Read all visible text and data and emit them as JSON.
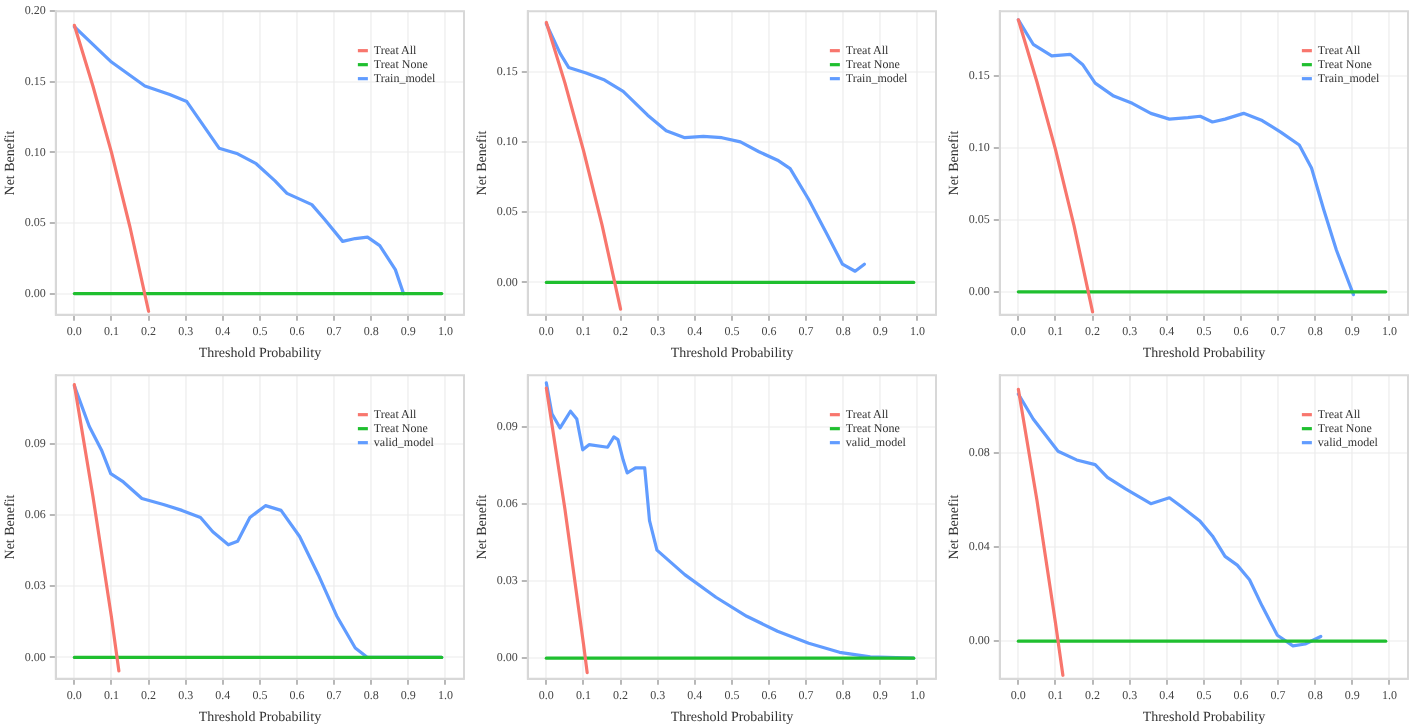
{
  "chart_data": [
    {
      "type": "line",
      "xlabel": "Threshold Probability",
      "ylabel": "Net Benefit",
      "grid": true,
      "legend": "top right",
      "xlim": [
        -0.05,
        1.05
      ],
      "ylim": [
        -0.015,
        0.2
      ],
      "xticks": [
        {
          "value": 0,
          "label": "0.0"
        },
        {
          "value": 0.1,
          "label": "0.1"
        },
        {
          "value": 0.2,
          "label": "0.2"
        },
        {
          "value": 0.3,
          "label": "0.3"
        },
        {
          "value": 0.4,
          "label": "0.4"
        },
        {
          "value": 0.5,
          "label": "0.5"
        },
        {
          "value": 0.6,
          "label": "0.6"
        },
        {
          "value": 0.7,
          "label": "0.7"
        },
        {
          "value": 0.8,
          "label": "0.8"
        },
        {
          "value": 0.9,
          "label": "0.9"
        },
        {
          "value": 1,
          "label": "1.0"
        }
      ],
      "yticks": [
        {
          "value": 0,
          "label": "0.00"
        },
        {
          "value": 0.05,
          "label": "0.05"
        },
        {
          "value": 0.1,
          "label": "0.10"
        },
        {
          "value": 0.15,
          "label": "0.15"
        },
        {
          "value": 0.2,
          "label": "0.20"
        }
      ],
      "series": [
        {
          "name": "Treat All",
          "color": "#f8766d",
          "x": [
            0,
            0.05,
            0.1,
            0.15,
            0.2
          ],
          "values": [
            0.19,
            0.147,
            0.1,
            0.047,
            -0.0125
          ]
        },
        {
          "name": "Treat None",
          "color": "#1fbf2f",
          "x": [
            0,
            0.99
          ],
          "values": [
            0,
            0
          ]
        },
        {
          "name": "Train_model",
          "color": "#619cff",
          "x": [
            0,
            0.04,
            0.1,
            0.19,
            0.257,
            0.303,
            0.34,
            0.39,
            0.44,
            0.49,
            0.54,
            0.573,
            0.64,
            0.673,
            0.723,
            0.757,
            0.79,
            0.823,
            0.865,
            0.887
          ],
          "values": [
            0.189,
            0.179,
            0.164,
            0.147,
            0.141,
            0.136,
            0.122,
            0.103,
            0.099,
            0.092,
            0.08,
            0.071,
            0.063,
            0.053,
            0.037,
            0.039,
            0.04,
            0.034,
            0.017,
            0
          ]
        }
      ]
    },
    {
      "type": "line",
      "xlabel": "Threshold Probability",
      "ylabel": "Net Benefit",
      "grid": true,
      "legend": "top right",
      "xlim": [
        -0.05,
        1.05
      ],
      "ylim": [
        -0.023,
        0.193
      ],
      "xticks": [
        {
          "value": 0,
          "label": "0.0"
        },
        {
          "value": 0.1,
          "label": "0.1"
        },
        {
          "value": 0.2,
          "label": "0.2"
        },
        {
          "value": 0.3,
          "label": "0.3"
        },
        {
          "value": 0.4,
          "label": "0.4"
        },
        {
          "value": 0.5,
          "label": "0.5"
        },
        {
          "value": 0.6,
          "label": "0.6"
        },
        {
          "value": 0.7,
          "label": "0.7"
        },
        {
          "value": 0.8,
          "label": "0.8"
        },
        {
          "value": 0.9,
          "label": "0.9"
        },
        {
          "value": 1,
          "label": "1.0"
        }
      ],
      "yticks": [
        {
          "value": 0,
          "label": "0.00"
        },
        {
          "value": 0.05,
          "label": "0.05"
        },
        {
          "value": 0.1,
          "label": "0.10"
        },
        {
          "value": 0.15,
          "label": "0.15"
        }
      ],
      "series": [
        {
          "name": "Treat All",
          "color": "#f8766d",
          "x": [
            0,
            0.05,
            0.1,
            0.15,
            0.2
          ],
          "values": [
            0.185,
            0.142,
            0.094,
            0.041,
            -0.019
          ]
        },
        {
          "name": "Treat None",
          "color": "#1fbf2f",
          "x": [
            0,
            0.99
          ],
          "values": [
            0,
            0
          ]
        },
        {
          "name": "Train_model",
          "color": "#619cff",
          "x": [
            0,
            0.037,
            0.06,
            0.107,
            0.157,
            0.207,
            0.273,
            0.323,
            0.373,
            0.423,
            0.473,
            0.523,
            0.573,
            0.623,
            0.657,
            0.707,
            0.757,
            0.798,
            0.832,
            0.857
          ],
          "values": [
            0.184,
            0.163,
            0.153,
            0.149,
            0.144,
            0.136,
            0.119,
            0.108,
            0.103,
            0.104,
            0.103,
            0.1,
            0.093,
            0.087,
            0.081,
            0.059,
            0.034,
            0.013,
            0.008,
            0.013
          ]
        }
      ]
    },
    {
      "type": "line",
      "xlabel": "Threshold Probability",
      "ylabel": "Net Benefit",
      "grid": true,
      "legend": "top right",
      "xlim": [
        -0.05,
        1.05
      ],
      "ylim": [
        -0.016,
        0.195
      ],
      "xticks": [
        {
          "value": 0,
          "label": "0.0"
        },
        {
          "value": 0.1,
          "label": "0.1"
        },
        {
          "value": 0.2,
          "label": "0.2"
        },
        {
          "value": 0.3,
          "label": "0.3"
        },
        {
          "value": 0.4,
          "label": "0.4"
        },
        {
          "value": 0.5,
          "label": "0.5"
        },
        {
          "value": 0.6,
          "label": "0.6"
        },
        {
          "value": 0.7,
          "label": "0.7"
        },
        {
          "value": 0.8,
          "label": "0.8"
        },
        {
          "value": 0.9,
          "label": "0.9"
        },
        {
          "value": 1,
          "label": "1.0"
        }
      ],
      "yticks": [
        {
          "value": 0,
          "label": "0.00"
        },
        {
          "value": 0.05,
          "label": "0.05"
        },
        {
          "value": 0.1,
          "label": "0.10"
        },
        {
          "value": 0.15,
          "label": "0.15"
        }
      ],
      "series": [
        {
          "name": "Treat All",
          "color": "#f8766d",
          "x": [
            0,
            0.05,
            0.1,
            0.15,
            0.2
          ],
          "values": [
            0.189,
            0.146,
            0.099,
            0.046,
            -0.014
          ]
        },
        {
          "name": "Treat None",
          "color": "#1fbf2f",
          "x": [
            0,
            0.99
          ],
          "values": [
            0,
            0
          ]
        },
        {
          "name": "Train_model",
          "color": "#619cff",
          "x": [
            0,
            0.04,
            0.09,
            0.14,
            0.173,
            0.207,
            0.257,
            0.307,
            0.357,
            0.407,
            0.457,
            0.49,
            0.523,
            0.557,
            0.607,
            0.657,
            0.707,
            0.757,
            0.79,
            0.823,
            0.857,
            0.903
          ],
          "values": [
            0.189,
            0.172,
            0.164,
            0.165,
            0.158,
            0.145,
            0.136,
            0.131,
            0.124,
            0.12,
            0.121,
            0.122,
            0.118,
            0.12,
            0.124,
            0.119,
            0.111,
            0.102,
            0.086,
            0.057,
            0.029,
            -0.002
          ]
        }
      ]
    },
    {
      "type": "line",
      "xlabel": "Threshold Probability",
      "ylabel": "Net Benefit",
      "grid": true,
      "legend": "top right",
      "xlim": [
        -0.05,
        1.05
      ],
      "ylim": [
        -0.009,
        0.119
      ],
      "xticks": [
        {
          "value": 0,
          "label": "0.0"
        },
        {
          "value": 0.1,
          "label": "0.1"
        },
        {
          "value": 0.2,
          "label": "0.2"
        },
        {
          "value": 0.3,
          "label": "0.3"
        },
        {
          "value": 0.4,
          "label": "0.4"
        },
        {
          "value": 0.5,
          "label": "0.5"
        },
        {
          "value": 0.6,
          "label": "0.6"
        },
        {
          "value": 0.7,
          "label": "0.7"
        },
        {
          "value": 0.8,
          "label": "0.8"
        },
        {
          "value": 0.9,
          "label": "0.9"
        },
        {
          "value": 1,
          "label": "1.0"
        }
      ],
      "yticks": [
        {
          "value": 0,
          "label": "0.00"
        },
        {
          "value": 0.03,
          "label": "0.03"
        },
        {
          "value": 0.06,
          "label": "0.06"
        },
        {
          "value": 0.09,
          "label": "0.09"
        }
      ],
      "series": [
        {
          "name": "Treat All",
          "color": "#f8766d",
          "x": [
            0,
            0.05,
            0.1,
            0.12
          ],
          "values": [
            0.115,
            0.068,
            0.017,
            -0.0057
          ]
        },
        {
          "name": "Treat None",
          "color": "#1fbf2f",
          "x": [
            0,
            0.99
          ],
          "values": [
            0,
            0
          ]
        },
        {
          "name": "valid_model",
          "color": "#619cff",
          "x": [
            0,
            0.04,
            0.073,
            0.098,
            0.132,
            0.182,
            0.24,
            0.29,
            0.34,
            0.373,
            0.415,
            0.44,
            0.473,
            0.515,
            0.557,
            0.607,
            0.657,
            0.707,
            0.757,
            0.79,
            0.99
          ],
          "values": [
            0.1145,
            0.0975,
            0.0875,
            0.0775,
            0.074,
            0.067,
            0.0645,
            0.062,
            0.059,
            0.053,
            0.0475,
            0.049,
            0.059,
            0.064,
            0.062,
            0.051,
            0.035,
            0.0175,
            0.004,
            0,
            0
          ]
        }
      ]
    },
    {
      "type": "line",
      "xlabel": "Threshold Probability",
      "ylabel": "Net Benefit",
      "grid": true,
      "legend": "top right",
      "xlim": [
        -0.05,
        1.05
      ],
      "ylim": [
        -0.008,
        0.11
      ],
      "xticks": [
        {
          "value": 0,
          "label": "0.0"
        },
        {
          "value": 0.1,
          "label": "0.1"
        },
        {
          "value": 0.2,
          "label": "0.2"
        },
        {
          "value": 0.3,
          "label": "0.3"
        },
        {
          "value": 0.4,
          "label": "0.4"
        },
        {
          "value": 0.5,
          "label": "0.5"
        },
        {
          "value": 0.6,
          "label": "0.6"
        },
        {
          "value": 0.7,
          "label": "0.7"
        },
        {
          "value": 0.8,
          "label": "0.8"
        },
        {
          "value": 0.9,
          "label": "0.9"
        },
        {
          "value": 1,
          "label": "1.0"
        }
      ],
      "yticks": [
        {
          "value": 0,
          "label": "0.00"
        },
        {
          "value": 0.03,
          "label": "0.03"
        },
        {
          "value": 0.06,
          "label": "0.06"
        },
        {
          "value": 0.09,
          "label": "0.09"
        }
      ],
      "series": [
        {
          "name": "Treat All",
          "color": "#f8766d",
          "x": [
            0,
            0.05,
            0.1,
            0.11
          ],
          "values": [
            0.105,
            0.058,
            0.0056,
            -0.0056
          ]
        },
        {
          "name": "Treat None",
          "color": "#1fbf2f",
          "x": [
            0,
            0.99
          ],
          "values": [
            0,
            0
          ]
        },
        {
          "name": "valid_model",
          "color": "#619cff",
          "x": [
            0,
            0.015,
            0.037,
            0.065,
            0.082,
            0.098,
            0.115,
            0.165,
            0.182,
            0.193,
            0.207,
            0.218,
            0.24,
            0.265,
            0.278,
            0.298,
            0.373,
            0.457,
            0.54,
            0.623,
            0.707,
            0.79,
            0.873,
            0.99
          ],
          "values": [
            0.107,
            0.095,
            0.0895,
            0.096,
            0.093,
            0.081,
            0.083,
            0.082,
            0.086,
            0.085,
            0.077,
            0.072,
            0.074,
            0.074,
            0.0535,
            0.042,
            0.0325,
            0.0237,
            0.0163,
            0.0105,
            0.0058,
            0.0023,
            0.0005,
            0
          ]
        }
      ]
    },
    {
      "type": "line",
      "xlabel": "Threshold Probability",
      "ylabel": "Net Benefit",
      "grid": true,
      "legend": "top right",
      "xlim": [
        -0.05,
        1.05
      ],
      "ylim": [
        -0.016,
        0.113
      ],
      "xticks": [
        {
          "value": 0,
          "label": "0.0"
        },
        {
          "value": 0.1,
          "label": "0.1"
        },
        {
          "value": 0.2,
          "label": "0.2"
        },
        {
          "value": 0.3,
          "label": "0.3"
        },
        {
          "value": 0.4,
          "label": "0.4"
        },
        {
          "value": 0.5,
          "label": "0.5"
        },
        {
          "value": 0.6,
          "label": "0.6"
        },
        {
          "value": 0.7,
          "label": "0.7"
        },
        {
          "value": 0.8,
          "label": "0.8"
        },
        {
          "value": 0.9,
          "label": "0.9"
        },
        {
          "value": 1,
          "label": "1.0"
        }
      ],
      "yticks": [
        {
          "value": 0,
          "label": "0.00"
        },
        {
          "value": 0.04,
          "label": "0.04"
        },
        {
          "value": 0.08,
          "label": "0.08"
        }
      ],
      "series": [
        {
          "name": "Treat All",
          "color": "#f8766d",
          "x": [
            0,
            0.05,
            0.1,
            0.12
          ],
          "values": [
            0.107,
            0.06,
            0.0078,
            -0.0145
          ]
        },
        {
          "name": "Treat None",
          "color": "#1fbf2f",
          "x": [
            0,
            0.99
          ],
          "values": [
            0,
            0
          ]
        },
        {
          "name": "valid_model",
          "color": "#619cff",
          "x": [
            0,
            0.04,
            0.107,
            0.157,
            0.207,
            0.24,
            0.29,
            0.357,
            0.407,
            0.44,
            0.49,
            0.523,
            0.557,
            0.59,
            0.623,
            0.657,
            0.698,
            0.74,
            0.773,
            0.815
          ],
          "values": [
            0.105,
            0.0944,
            0.0807,
            0.077,
            0.075,
            0.0696,
            0.0646,
            0.0584,
            0.0609,
            0.0571,
            0.0509,
            0.0447,
            0.036,
            0.0323,
            0.0261,
            0.0149,
            0.0025,
            -0.002,
            -0.0012,
            0.002
          ]
        }
      ]
    }
  ]
}
